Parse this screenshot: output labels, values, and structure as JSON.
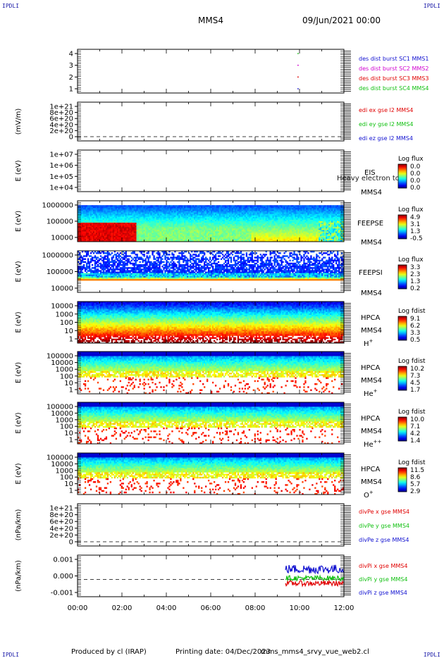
{
  "corners": {
    "tl": "IPDLI",
    "tr": "IPDLI",
    "bl": "IPDLI",
    "br": "IPDLI"
  },
  "header": {
    "title": "MMS4",
    "date": "09/Jun/2021 00:00"
  },
  "footer": {
    "produced": "Produced by cl (IRAP)",
    "printing": "Printing date: 04/Dec/2023",
    "file": "mms_mms4_srvy_vue_web2.cl"
  },
  "colors": {
    "red": "#e00000",
    "green": "#10c010",
    "blue": "#1010d0",
    "magenta": "#d000d0"
  },
  "chart_data": [
    {
      "type": "scatter",
      "id": "p1",
      "ylabel": "",
      "yticks": [
        "4",
        "3",
        "2",
        "1"
      ],
      "legend": [
        {
          "text": "des dist burst SC1 MMS1",
          "color": "#1010d0"
        },
        {
          "text": "des dist burst SC2 MMS2",
          "color": "#d000d0"
        },
        {
          "text": "des dist burst SC3 MMS3",
          "color": "#e00000"
        },
        {
          "text": "des dist burst SC4 MMS4",
          "color": "#10c010"
        }
      ],
      "points": [
        {
          "x": "09:56",
          "y": 4,
          "color": "#10c010"
        },
        {
          "x": "09:56",
          "y": 3,
          "color": "#d000d0"
        },
        {
          "x": "09:56",
          "y": 2,
          "color": "#e00000"
        },
        {
          "x": "09:56",
          "y": 1,
          "color": "#1010d0"
        }
      ]
    },
    {
      "type": "line",
      "id": "p2",
      "ylabel": "(mV/m)",
      "yticks": [
        "1e+21",
        "8e+20",
        "6e+20",
        "4e+20",
        "2e+20",
        "0"
      ],
      "legend": [
        {
          "text": "edi ex gse l2 MMS4",
          "color": "#e00000"
        },
        {
          "text": "edi ey gse l2 MMS4",
          "color": "#10c010"
        },
        {
          "text": "edi ez gse l2 MMS4",
          "color": "#1010d0"
        }
      ]
    },
    {
      "type": "heatmap",
      "id": "p3",
      "ylabel": "E (eV)",
      "yticks": [
        "1e+07",
        "1e+06",
        "1e+05",
        "1e+04"
      ],
      "instrument": "EIS",
      "overlay": "Heavy electron to",
      "spacecraft": "MMS4",
      "colorbar": {
        "title": "Log flux",
        "ticks": [
          "0.0",
          "0.0",
          "0.0",
          "0.0"
        ]
      }
    },
    {
      "type": "heatmap",
      "id": "p4",
      "ylabel": "E (eV)",
      "yticks": [
        "1000000",
        "100000",
        "10000"
      ],
      "instrument": "FEEPSE",
      "spacecraft": "MMS4",
      "colorbar": {
        "title": "Log flux",
        "ticks": [
          "4.9",
          "3.1",
          "1.3",
          "-0.5"
        ]
      }
    },
    {
      "type": "heatmap",
      "id": "p5",
      "ylabel": "E (eV)",
      "yticks": [
        "1000000",
        "100000",
        "10000"
      ],
      "instrument": "FEEPSI",
      "spacecraft": "MMS4",
      "colorbar": {
        "title": "Log flux",
        "ticks": [
          "3.3",
          "2.3",
          "1.3",
          "0.2"
        ]
      }
    },
    {
      "type": "heatmap",
      "id": "p6",
      "ylabel": "E (eV)",
      "yticks": [
        "10000",
        "1000",
        "100",
        "10",
        "1"
      ],
      "instrument": "HPCA",
      "spacecraft": "MMS4",
      "species": "H",
      "charge": "+",
      "colorbar": {
        "title": "Log fdist",
        "ticks": [
          "9.1",
          "6.2",
          "3.3",
          "0.5"
        ]
      }
    },
    {
      "type": "heatmap",
      "id": "p7",
      "ylabel": "E (eV)",
      "yticks": [
        "100000",
        "10000",
        "1000",
        "100",
        "10",
        "1"
      ],
      "instrument": "HPCA",
      "spacecraft": "MMS4",
      "species": "He",
      "charge": "+",
      "colorbar": {
        "title": "Log fdist",
        "ticks": [
          "10.2",
          "7.3",
          "4.5",
          "1.7"
        ]
      }
    },
    {
      "type": "heatmap",
      "id": "p8",
      "ylabel": "E (eV)",
      "yticks": [
        "100000",
        "10000",
        "1000",
        "100",
        "10",
        "1"
      ],
      "instrument": "HPCA",
      "spacecraft": "MMS4",
      "species": "He",
      "charge": "++",
      "colorbar": {
        "title": "Log fdist",
        "ticks": [
          "10.0",
          "7.1",
          "4.2",
          "1.4"
        ]
      }
    },
    {
      "type": "heatmap",
      "id": "p9",
      "ylabel": "E (eV)",
      "yticks": [
        "100000",
        "10000",
        "1000",
        "100",
        "10",
        "1"
      ],
      "instrument": "HPCA",
      "spacecraft": "MMS4",
      "species": "O",
      "charge": "+",
      "colorbar": {
        "title": "Log fdist",
        "ticks": [
          "11.5",
          "8.6",
          "5.7",
          "2.9"
        ]
      }
    },
    {
      "type": "line",
      "id": "p10",
      "ylabel": "(nPa/km)",
      "yticks": [
        "1e+21",
        "8e+20",
        "6e+20",
        "4e+20",
        "2e+20",
        "0"
      ],
      "legend": [
        {
          "text": "divPe x gse MMS4",
          "color": "#e00000"
        },
        {
          "text": "divPe y gse MMS4",
          "color": "#10c010"
        },
        {
          "text": "divPe z gse MMS4",
          "color": "#1010d0"
        }
      ]
    },
    {
      "type": "line",
      "id": "p11",
      "ylabel": "(nPa/km)",
      "yticks": [
        "0.001",
        "0.000",
        "-0.001"
      ],
      "legend": [
        {
          "text": "divPi x gse MMS4",
          "color": "#e00000"
        },
        {
          "text": "divPi y gse MMS4",
          "color": "#10c010"
        },
        {
          "text": "divPi z gse MMS4",
          "color": "#1010d0"
        }
      ],
      "series_start": "09:22",
      "series_end": "12:00",
      "ylim": [
        -0.0015,
        0.0017
      ]
    }
  ],
  "xaxis": {
    "ticks": [
      "00:00",
      "02:00",
      "04:00",
      "06:00",
      "08:00",
      "10:00",
      "12:00"
    ],
    "range": [
      "00:00",
      "12:00"
    ]
  }
}
